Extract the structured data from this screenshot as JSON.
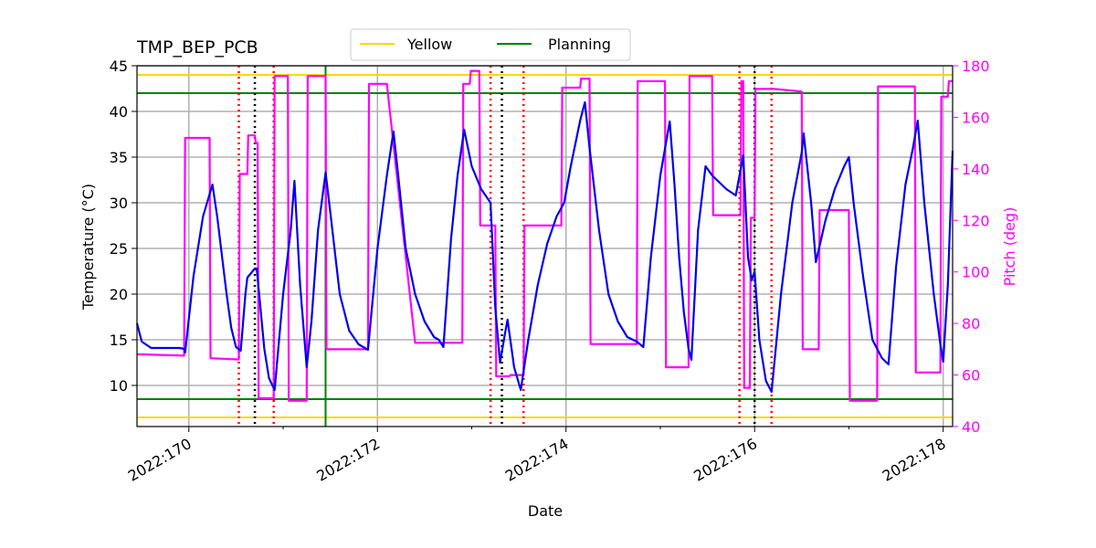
{
  "chart_data": {
    "type": "line",
    "title": "TMP_BEP_PCB",
    "xlabel": "Date",
    "ylabel": "Temperature ($^\\circ$C)",
    "ylabel_display": "Temperature (°C)",
    "y2label": "Pitch (deg)",
    "xlim": [
      169.45,
      178.1
    ],
    "ylim": [
      5.5,
      45
    ],
    "y2lim": [
      40,
      180
    ],
    "x_ticks": [
      {
        "value": 170,
        "label": "2022:170"
      },
      {
        "value": 172,
        "label": "2022:172"
      },
      {
        "value": 174,
        "label": "2022:174"
      },
      {
        "value": 176,
        "label": "2022:176"
      },
      {
        "value": 178,
        "label": "2022:178"
      }
    ],
    "y_ticks": [
      10,
      15,
      20,
      25,
      30,
      35,
      40,
      45
    ],
    "y2_ticks": [
      40,
      60,
      80,
      100,
      120,
      140,
      160,
      180
    ],
    "grid": true,
    "legend": {
      "placement": "top-center",
      "entries": [
        {
          "name": "Yellow",
          "color": "#ffd700"
        },
        {
          "name": "Planning",
          "color": "#008000"
        }
      ]
    },
    "colors": {
      "temperature": "#0000ee",
      "pitch": "#ff00ff",
      "yellow": "#ffd700",
      "planning": "#008000",
      "red_marker": "#ff0000",
      "black_marker": "#000000",
      "grid": "#b0b0b0"
    },
    "hlines": [
      {
        "value": 44,
        "color": "yellow"
      },
      {
        "value": 6.5,
        "color": "yellow"
      },
      {
        "value": 42,
        "color": "planning"
      },
      {
        "value": 8.5,
        "color": "planning"
      }
    ],
    "vlines": [
      {
        "x": 171.45,
        "style": "solid",
        "color": "planning"
      },
      {
        "x": 170.53,
        "style": "dotted",
        "color": "red_marker"
      },
      {
        "x": 170.7,
        "style": "dotted",
        "color": "black_marker"
      },
      {
        "x": 170.9,
        "style": "dotted",
        "color": "red_marker"
      },
      {
        "x": 173.2,
        "style": "dotted",
        "color": "red_marker"
      },
      {
        "x": 173.32,
        "style": "dotted",
        "color": "black_marker"
      },
      {
        "x": 173.55,
        "style": "dotted",
        "color": "red_marker"
      },
      {
        "x": 175.84,
        "style": "dotted",
        "color": "red_marker"
      },
      {
        "x": 176.0,
        "style": "dotted",
        "color": "black_marker"
      },
      {
        "x": 176.18,
        "style": "dotted",
        "color": "red_marker"
      }
    ],
    "series": [
      {
        "axis": "y",
        "color": "temperature",
        "points": [
          [
            169.45,
            16.8
          ],
          [
            169.5,
            14.8
          ],
          [
            169.6,
            14.1
          ],
          [
            169.7,
            14.1
          ],
          [
            169.8,
            14.1
          ],
          [
            169.9,
            14.1
          ],
          [
            169.95,
            14.0
          ],
          [
            169.96,
            13.6
          ],
          [
            170.05,
            22
          ],
          [
            170.15,
            28.5
          ],
          [
            170.25,
            32
          ],
          [
            170.3,
            28.5
          ],
          [
            170.4,
            20
          ],
          [
            170.45,
            16.3
          ],
          [
            170.5,
            14.2
          ],
          [
            170.55,
            13.8
          ],
          [
            170.6,
            20
          ],
          [
            170.62,
            21.8
          ],
          [
            170.7,
            22.8
          ],
          [
            170.72,
            22.8
          ],
          [
            170.8,
            14
          ],
          [
            170.85,
            10.8
          ],
          [
            170.91,
            9.5
          ],
          [
            171.0,
            20
          ],
          [
            171.08,
            27
          ],
          [
            171.12,
            32.4
          ],
          [
            171.18,
            21
          ],
          [
            171.25,
            12
          ],
          [
            171.3,
            17
          ],
          [
            171.37,
            27
          ],
          [
            171.45,
            33.3
          ],
          [
            171.5,
            29
          ],
          [
            171.6,
            20
          ],
          [
            171.7,
            16
          ],
          [
            171.8,
            14.5
          ],
          [
            171.85,
            14.2
          ],
          [
            171.9,
            13.9
          ],
          [
            172.0,
            25
          ],
          [
            172.1,
            33
          ],
          [
            172.17,
            37.8
          ],
          [
            172.22,
            33
          ],
          [
            172.3,
            25
          ],
          [
            172.4,
            20
          ],
          [
            172.5,
            17
          ],
          [
            172.6,
            15.3
          ],
          [
            172.65,
            15
          ],
          [
            172.7,
            14.2
          ],
          [
            172.78,
            26
          ],
          [
            172.85,
            33
          ],
          [
            172.92,
            38
          ],
          [
            173.0,
            34
          ],
          [
            173.1,
            31.5
          ],
          [
            173.2,
            30
          ],
          [
            173.25,
            18.5
          ],
          [
            173.3,
            12.5
          ],
          [
            173.35,
            15.5
          ],
          [
            173.38,
            17.2
          ],
          [
            173.45,
            12
          ],
          [
            173.52,
            9.5
          ],
          [
            173.6,
            15
          ],
          [
            173.7,
            21
          ],
          [
            173.8,
            25.5
          ],
          [
            173.9,
            28.5
          ],
          [
            173.98,
            30
          ],
          [
            174.05,
            34
          ],
          [
            174.15,
            39
          ],
          [
            174.2,
            41
          ],
          [
            174.25,
            36
          ],
          [
            174.35,
            27
          ],
          [
            174.45,
            20
          ],
          [
            174.55,
            17
          ],
          [
            174.65,
            15.3
          ],
          [
            174.75,
            14.8
          ],
          [
            174.82,
            14.2
          ],
          [
            174.9,
            24
          ],
          [
            175.0,
            33
          ],
          [
            175.1,
            38.9
          ],
          [
            175.15,
            32
          ],
          [
            175.2,
            24
          ],
          [
            175.25,
            18
          ],
          [
            175.3,
            14
          ],
          [
            175.33,
            12.8
          ],
          [
            175.4,
            27
          ],
          [
            175.48,
            34
          ],
          [
            175.55,
            33
          ],
          [
            175.7,
            31.5
          ],
          [
            175.8,
            30.8
          ],
          [
            175.88,
            35.2
          ],
          [
            175.93,
            24
          ],
          [
            175.97,
            21.5
          ],
          [
            176.0,
            22.5
          ],
          [
            176.05,
            15
          ],
          [
            176.12,
            10.5
          ],
          [
            176.18,
            9.3
          ],
          [
            176.28,
            20
          ],
          [
            176.4,
            30
          ],
          [
            176.5,
            35.5
          ],
          [
            176.52,
            37.6
          ],
          [
            176.6,
            30
          ],
          [
            176.65,
            23.5
          ],
          [
            176.75,
            28
          ],
          [
            176.85,
            31.5
          ],
          [
            176.95,
            34
          ],
          [
            177.0,
            35
          ],
          [
            177.05,
            30
          ],
          [
            177.15,
            22
          ],
          [
            177.25,
            15
          ],
          [
            177.35,
            13
          ],
          [
            177.42,
            12.3
          ],
          [
            177.5,
            23
          ],
          [
            177.6,
            32
          ],
          [
            177.68,
            36
          ],
          [
            177.73,
            39
          ],
          [
            177.8,
            30
          ],
          [
            177.9,
            20
          ],
          [
            177.97,
            14.5
          ],
          [
            178.0,
            12.6
          ],
          [
            178.05,
            21
          ],
          [
            178.1,
            35.7
          ]
        ]
      },
      {
        "axis": "y2",
        "color": "pitch",
        "points": [
          [
            169.45,
            68
          ],
          [
            169.5,
            68
          ],
          [
            169.95,
            67.5
          ],
          [
            169.96,
            152
          ],
          [
            170.22,
            152
          ],
          [
            170.23,
            66.5
          ],
          [
            170.53,
            66
          ],
          [
            170.54,
            138
          ],
          [
            170.62,
            138
          ],
          [
            170.63,
            153
          ],
          [
            170.7,
            153
          ],
          [
            170.71,
            150
          ],
          [
            170.73,
            150
          ],
          [
            170.74,
            51
          ],
          [
            170.9,
            51
          ],
          [
            170.91,
            176
          ],
          [
            171.05,
            176
          ],
          [
            171.06,
            50
          ],
          [
            171.25,
            50
          ],
          [
            171.26,
            176
          ],
          [
            171.45,
            176
          ],
          [
            171.46,
            70
          ],
          [
            171.9,
            70
          ],
          [
            171.91,
            173
          ],
          [
            172.1,
            173
          ],
          [
            172.4,
            72.5
          ],
          [
            172.9,
            72.5
          ],
          [
            172.91,
            173
          ],
          [
            172.98,
            173
          ],
          [
            172.99,
            178
          ],
          [
            173.08,
            178
          ],
          [
            173.09,
            118
          ],
          [
            173.25,
            118
          ],
          [
            173.26,
            59.5
          ],
          [
            173.4,
            59.5
          ],
          [
            173.41,
            60
          ],
          [
            173.55,
            60
          ],
          [
            173.56,
            118
          ],
          [
            173.95,
            118
          ],
          [
            173.96,
            171.5
          ],
          [
            174.15,
            171.5
          ],
          [
            174.16,
            175
          ],
          [
            174.25,
            175
          ],
          [
            174.26,
            72
          ],
          [
            174.75,
            72
          ],
          [
            174.76,
            174
          ],
          [
            175.0,
            174
          ],
          [
            175.01,
            174
          ],
          [
            175.05,
            174
          ],
          [
            175.06,
            63
          ],
          [
            175.3,
            63
          ],
          [
            175.31,
            176
          ],
          [
            175.55,
            176
          ],
          [
            175.56,
            122
          ],
          [
            175.85,
            122
          ],
          [
            175.86,
            174
          ],
          [
            175.88,
            174
          ],
          [
            175.89,
            55
          ],
          [
            175.95,
            55
          ],
          [
            175.96,
            121
          ],
          [
            176.0,
            121
          ],
          [
            176.01,
            171
          ],
          [
            176.2,
            171
          ],
          [
            176.21,
            171
          ],
          [
            176.5,
            170
          ],
          [
            176.51,
            70
          ],
          [
            176.68,
            70
          ],
          [
            176.69,
            124
          ],
          [
            177.0,
            124
          ],
          [
            177.01,
            50
          ],
          [
            177.3,
            50
          ],
          [
            177.31,
            172
          ],
          [
            177.7,
            172
          ],
          [
            177.71,
            61
          ],
          [
            177.97,
            61
          ],
          [
            177.98,
            168
          ],
          [
            178.05,
            168
          ],
          [
            178.06,
            174
          ],
          [
            178.1,
            174
          ]
        ]
      }
    ]
  }
}
